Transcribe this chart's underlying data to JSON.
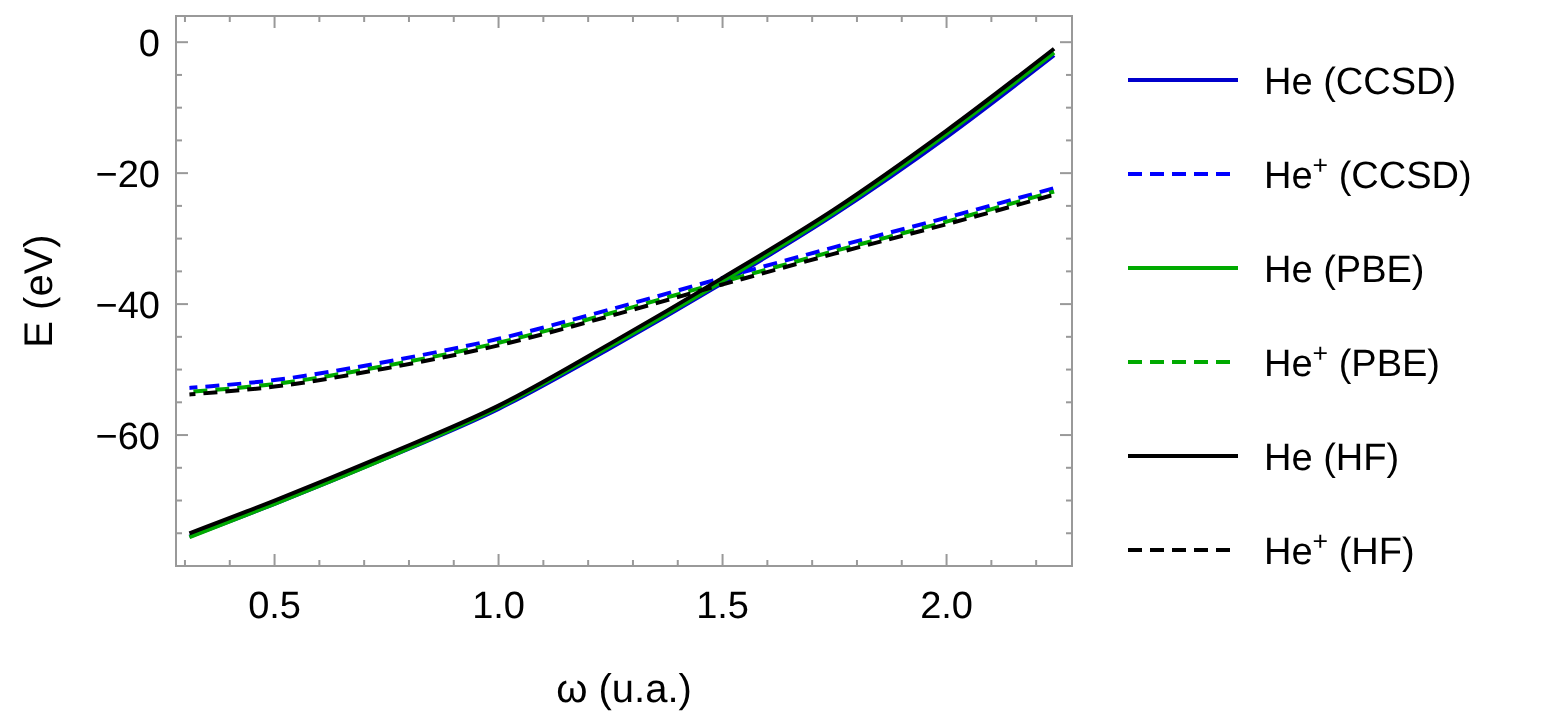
{
  "chart_data": {
    "type": "line",
    "xlabel": "ω (u.a.)",
    "ylabel": "E (eV)",
    "xlim": [
      0.28,
      2.28
    ],
    "ylim": [
      -80,
      4
    ],
    "xticks": [
      {
        "value": 0.3,
        "label": null
      },
      {
        "value": 0.4,
        "label": null
      },
      {
        "value": 0.5,
        "label": "0.5"
      },
      {
        "value": 0.6,
        "label": null
      },
      {
        "value": 0.7,
        "label": null
      },
      {
        "value": 0.8,
        "label": null
      },
      {
        "value": 0.9,
        "label": null
      },
      {
        "value": 1.0,
        "label": "1.0"
      },
      {
        "value": 1.1,
        "label": null
      },
      {
        "value": 1.2,
        "label": null
      },
      {
        "value": 1.3,
        "label": null
      },
      {
        "value": 1.4,
        "label": null
      },
      {
        "value": 1.5,
        "label": "1.5"
      },
      {
        "value": 1.6,
        "label": null
      },
      {
        "value": 1.7,
        "label": null
      },
      {
        "value": 1.8,
        "label": null
      },
      {
        "value": 1.9,
        "label": null
      },
      {
        "value": 2.0,
        "label": "2.0"
      },
      {
        "value": 2.1,
        "label": null
      },
      {
        "value": 2.2,
        "label": null
      }
    ],
    "yticks": [
      {
        "value": -75,
        "label": null
      },
      {
        "value": -70,
        "label": null
      },
      {
        "value": -65,
        "label": null
      },
      {
        "value": -60,
        "label": "−60"
      },
      {
        "value": -55,
        "label": null
      },
      {
        "value": -50,
        "label": null
      },
      {
        "value": -45,
        "label": null
      },
      {
        "value": -40,
        "label": "−40"
      },
      {
        "value": -35,
        "label": null
      },
      {
        "value": -30,
        "label": null
      },
      {
        "value": -25,
        "label": null
      },
      {
        "value": -20,
        "label": "−20"
      },
      {
        "value": -15,
        "label": null
      },
      {
        "value": -10,
        "label": null
      },
      {
        "value": -5,
        "label": null
      },
      {
        "value": 0,
        "label": "0"
      }
    ],
    "grid": false,
    "legend": "right",
    "marker": "none",
    "x": [
      0.31,
      0.5,
      0.75,
      1.0,
      1.25,
      1.5,
      1.75,
      2.0,
      2.24
    ],
    "series": [
      {
        "name": "He (CCSD)",
        "color": "#0000cc",
        "line_style": "solid",
        "values": [
          -75.5,
          -70.5,
          -63.5,
          -56,
          -46.7,
          -36.8,
          -26.3,
          -14.5,
          -2
        ]
      },
      {
        "name": "He$^{+}$ (CCSD)",
        "color": "#0000ff",
        "line_style": "dashed",
        "values": [
          -52.8,
          -51.6,
          -48.8,
          -45.3,
          -40.8,
          -36,
          -31.3,
          -26.8,
          -22.3
        ]
      },
      {
        "name": "He (PBE)",
        "color": "#00aa00",
        "line_style": "solid",
        "values": [
          -75.6,
          -70.5,
          -63.5,
          -55.8,
          -46.4,
          -36.5,
          -26,
          -14,
          -1.6
        ]
      },
      {
        "name": "He$^{+}$ (PBE)",
        "color": "#00aa00",
        "line_style": "dashed",
        "values": [
          -53.4,
          -52.2,
          -49.4,
          -45.9,
          -41.4,
          -36.6,
          -31.9,
          -27.4,
          -22.8
        ]
      },
      {
        "name": "He (HF)",
        "color": "#000000",
        "line_style": "solid",
        "values": [
          -75,
          -70,
          -63,
          -55.5,
          -46,
          -36,
          -25.5,
          -13.5,
          -1
        ]
      },
      {
        "name": "He$^{+}$ (HF)",
        "color": "#000000",
        "line_style": "dashed",
        "values": [
          -53.8,
          -52.6,
          -49.8,
          -46.3,
          -41.8,
          -37,
          -32.3,
          -27.8,
          -23.3
        ]
      }
    ]
  }
}
